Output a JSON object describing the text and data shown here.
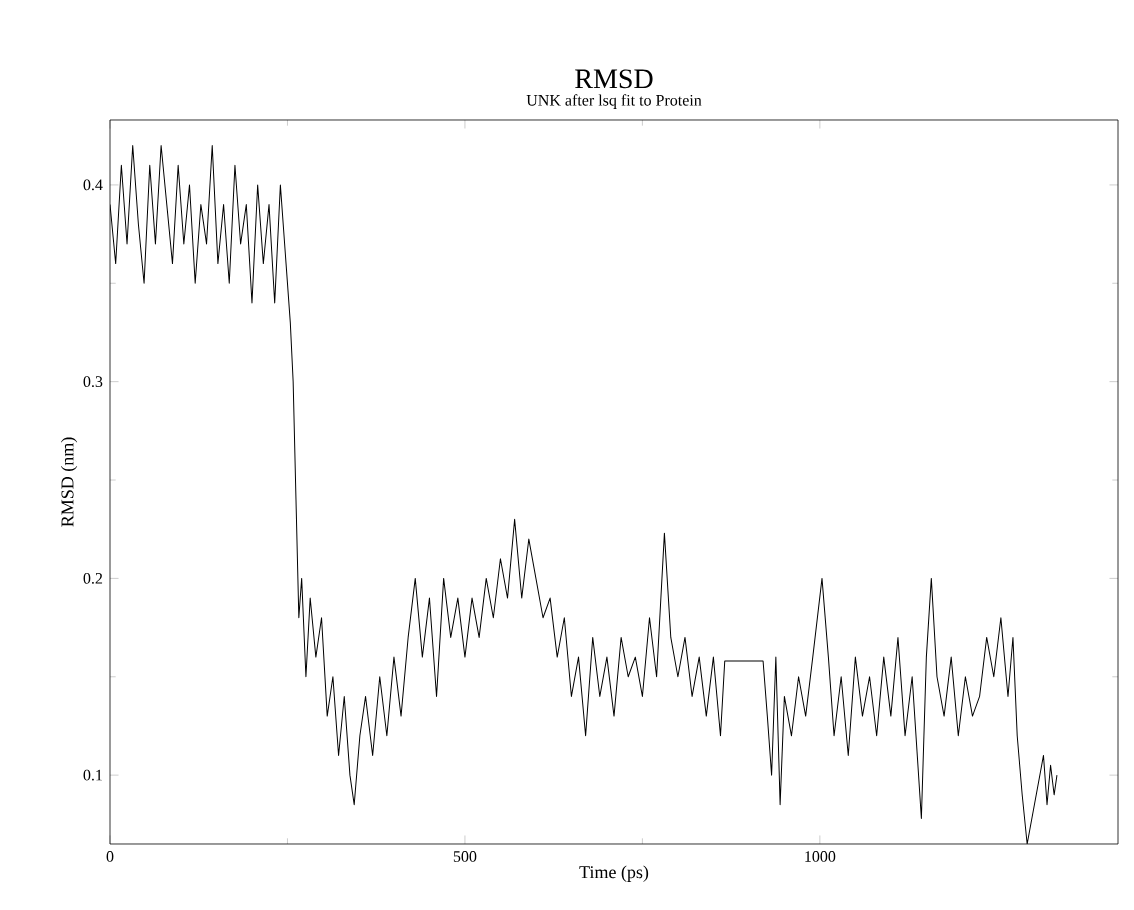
{
  "chart_data": {
    "type": "line",
    "title": "RMSD",
    "subtitle": "UNK after lsq fit to Protein",
    "xlabel": "Time (ps)",
    "ylabel": "RMSD (nm)",
    "xlim": [
      0,
      1420
    ],
    "ylim": [
      0.065,
      0.433
    ],
    "xticks": [
      0,
      500,
      1000
    ],
    "yticks": [
      0.1,
      0.2,
      0.3,
      0.4
    ],
    "grid": false,
    "marker": "none",
    "line_style": "solid",
    "series": [
      {
        "color": "#000000",
        "x": [
          0,
          8,
          16,
          24,
          32,
          40,
          48,
          56,
          64,
          72,
          80,
          88,
          96,
          104,
          112,
          120,
          128,
          136,
          144,
          152,
          160,
          168,
          176,
          184,
          192,
          200,
          208,
          216,
          224,
          232,
          240,
          248,
          254,
          258,
          262,
          266,
          270,
          276,
          282,
          290,
          298,
          306,
          314,
          322,
          330,
          338,
          344,
          352,
          360,
          370,
          380,
          390,
          400,
          410,
          420,
          430,
          440,
          450,
          460,
          470,
          480,
          490,
          500,
          510,
          520,
          530,
          540,
          550,
          560,
          570,
          580,
          590,
          600,
          610,
          620,
          630,
          640,
          650,
          660,
          670,
          680,
          690,
          700,
          710,
          720,
          730,
          740,
          750,
          760,
          770,
          781,
          790,
          800,
          810,
          820,
          830,
          840,
          850,
          860,
          866,
          920,
          926,
          932,
          938,
          944,
          950,
          960,
          970,
          980,
          990,
          1003,
          1012,
          1020,
          1030,
          1040,
          1050,
          1060,
          1070,
          1080,
          1090,
          1100,
          1110,
          1120,
          1130,
          1143,
          1150,
          1157,
          1165,
          1175,
          1185,
          1195,
          1205,
          1215,
          1225,
          1235,
          1245,
          1255,
          1265,
          1272,
          1278,
          1285,
          1292,
          1315,
          1320,
          1325,
          1330,
          1334
        ],
        "values": [
          0.39,
          0.36,
          0.41,
          0.37,
          0.42,
          0.38,
          0.35,
          0.41,
          0.37,
          0.42,
          0.39,
          0.36,
          0.41,
          0.37,
          0.4,
          0.35,
          0.39,
          0.37,
          0.42,
          0.36,
          0.39,
          0.35,
          0.41,
          0.37,
          0.39,
          0.34,
          0.4,
          0.36,
          0.39,
          0.34,
          0.4,
          0.36,
          0.33,
          0.3,
          0.24,
          0.18,
          0.2,
          0.15,
          0.19,
          0.16,
          0.18,
          0.13,
          0.15,
          0.11,
          0.14,
          0.1,
          0.085,
          0.12,
          0.14,
          0.11,
          0.15,
          0.12,
          0.16,
          0.13,
          0.17,
          0.2,
          0.16,
          0.19,
          0.14,
          0.2,
          0.17,
          0.19,
          0.16,
          0.19,
          0.17,
          0.2,
          0.18,
          0.21,
          0.19,
          0.23,
          0.19,
          0.22,
          0.2,
          0.18,
          0.19,
          0.16,
          0.18,
          0.14,
          0.16,
          0.12,
          0.17,
          0.14,
          0.16,
          0.13,
          0.17,
          0.15,
          0.16,
          0.14,
          0.18,
          0.15,
          0.223,
          0.17,
          0.15,
          0.17,
          0.14,
          0.16,
          0.13,
          0.16,
          0.12,
          0.158,
          0.158,
          0.13,
          0.1,
          0.16,
          0.085,
          0.14,
          0.12,
          0.15,
          0.13,
          0.16,
          0.2,
          0.16,
          0.12,
          0.15,
          0.11,
          0.16,
          0.13,
          0.15,
          0.12,
          0.16,
          0.13,
          0.17,
          0.12,
          0.15,
          0.078,
          0.16,
          0.2,
          0.15,
          0.13,
          0.16,
          0.12,
          0.15,
          0.13,
          0.14,
          0.17,
          0.15,
          0.18,
          0.14,
          0.17,
          0.12,
          0.09,
          0.065,
          0.11,
          0.085,
          0.105,
          0.09,
          0.1
        ]
      }
    ]
  }
}
